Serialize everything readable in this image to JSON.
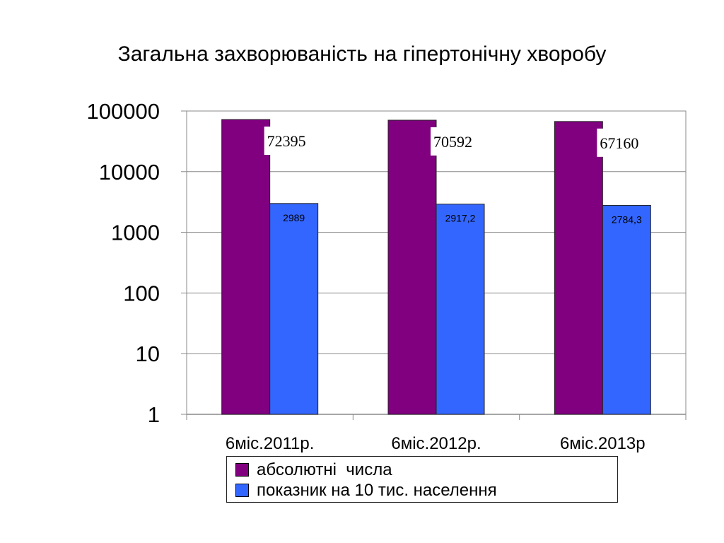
{
  "chart_data": {
    "type": "bar",
    "title": "Загальна захворюваність на гіпертонічну хворобу",
    "categories": [
      "6міс.2011р.",
      "6міс.2012р.",
      "6міс.2013р"
    ],
    "series": [
      {
        "name": "абсолютні  числа",
        "values": [
          72395,
          70592,
          67160
        ],
        "labels": [
          "72395",
          "70592",
          "67160"
        ],
        "color": "#800080"
      },
      {
        "name": "показник на 10 тис. населення",
        "values": [
          2989,
          2917.2,
          2784.3
        ],
        "labels": [
          "2989",
          "2917,2",
          "2784,3"
        ],
        "color": "#3366FF"
      }
    ],
    "y_scale": "log",
    "ylim": [
      1,
      100000
    ],
    "yticks": [
      "1",
      "10",
      "100",
      "1000",
      "10000",
      "100000"
    ],
    "grid": true,
    "legend_position": "bottom"
  }
}
